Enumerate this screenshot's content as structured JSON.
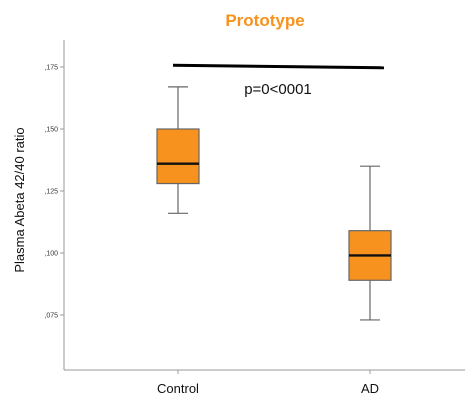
{
  "chart_data": {
    "type": "boxplot",
    "title": "Prototype",
    "ylabel": "Plasma Abeta 42/40 ratio",
    "xlabel": "",
    "ylim": [
      0.06,
      0.195
    ],
    "yticks": [
      {
        "value": 0.075,
        "label": ",075"
      },
      {
        "value": 0.1,
        "label": ",100"
      },
      {
        "value": 0.125,
        "label": ",125"
      },
      {
        "value": 0.15,
        "label": ",150"
      },
      {
        "value": 0.175,
        "label": ",175"
      }
    ],
    "categories": [
      "Control",
      "AD"
    ],
    "boxes": [
      {
        "category": "Control",
        "min": 0.116,
        "q1": 0.128,
        "median": 0.136,
        "q3": 0.15,
        "max": 0.167
      },
      {
        "category": "AD",
        "min": 0.073,
        "q1": 0.089,
        "median": 0.099,
        "q3": 0.109,
        "max": 0.135
      }
    ],
    "annotation": {
      "text": "p=0<0001",
      "bracket_y": 0.1757,
      "bracket_y_end": 0.1747
    },
    "grid": false,
    "colors": {
      "box_fill": "#F7921E",
      "box_stroke": "#666666",
      "title": "#F7921E",
      "axis": "#999999"
    }
  }
}
